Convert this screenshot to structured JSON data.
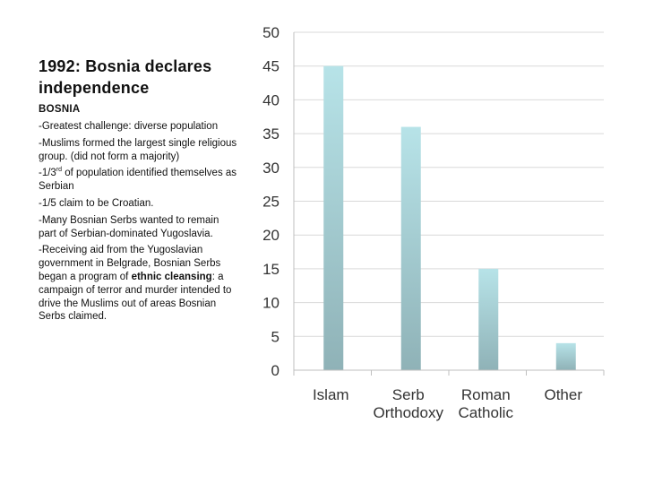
{
  "slide": {
    "title_line1": "1992: Bosnia declares",
    "title_line2": "independence",
    "heading": "BOSNIA",
    "b1": "-Greatest challenge: diverse population",
    "b2": "-Muslims formed the largest single religious group. (did not form a majority)",
    "b3_pre": "-1/3",
    "b3_sup": "rd",
    "b3_post": " of population identified themselves as Serbian",
    "b4": "-1/5 claim to be Croatian.",
    "b5": "-Many Bosnian Serbs wanted to remain part of Serbian-dominated Yugoslavia.",
    "b6_pre": "-Receiving aid from the Yugoslavian government in Belgrade, Bosnian Serbs began a program of ",
    "b6_bold": "ethnic cleansing",
    "b6_post": ": a campaign of terror and murder intended to drive the Muslims out of areas Bosnian Serbs claimed."
  },
  "chart_data": {
    "type": "bar",
    "categories": [
      [
        "Islam"
      ],
      [
        "Serb",
        "Orthodoxy"
      ],
      [
        "Roman",
        "Catholic"
      ],
      [
        "Other"
      ]
    ],
    "values": [
      45,
      36,
      15,
      4
    ],
    "ylim": [
      0,
      50
    ],
    "yticks": [
      "0",
      "5",
      "10",
      "15",
      "20",
      "25",
      "30",
      "35",
      "40",
      "45",
      "50"
    ],
    "title": "",
    "xlabel": "",
    "ylabel": "",
    "bar_color_top": "#b7e3e8",
    "bar_color_bottom": "#8fb2b7",
    "grid": true
  }
}
